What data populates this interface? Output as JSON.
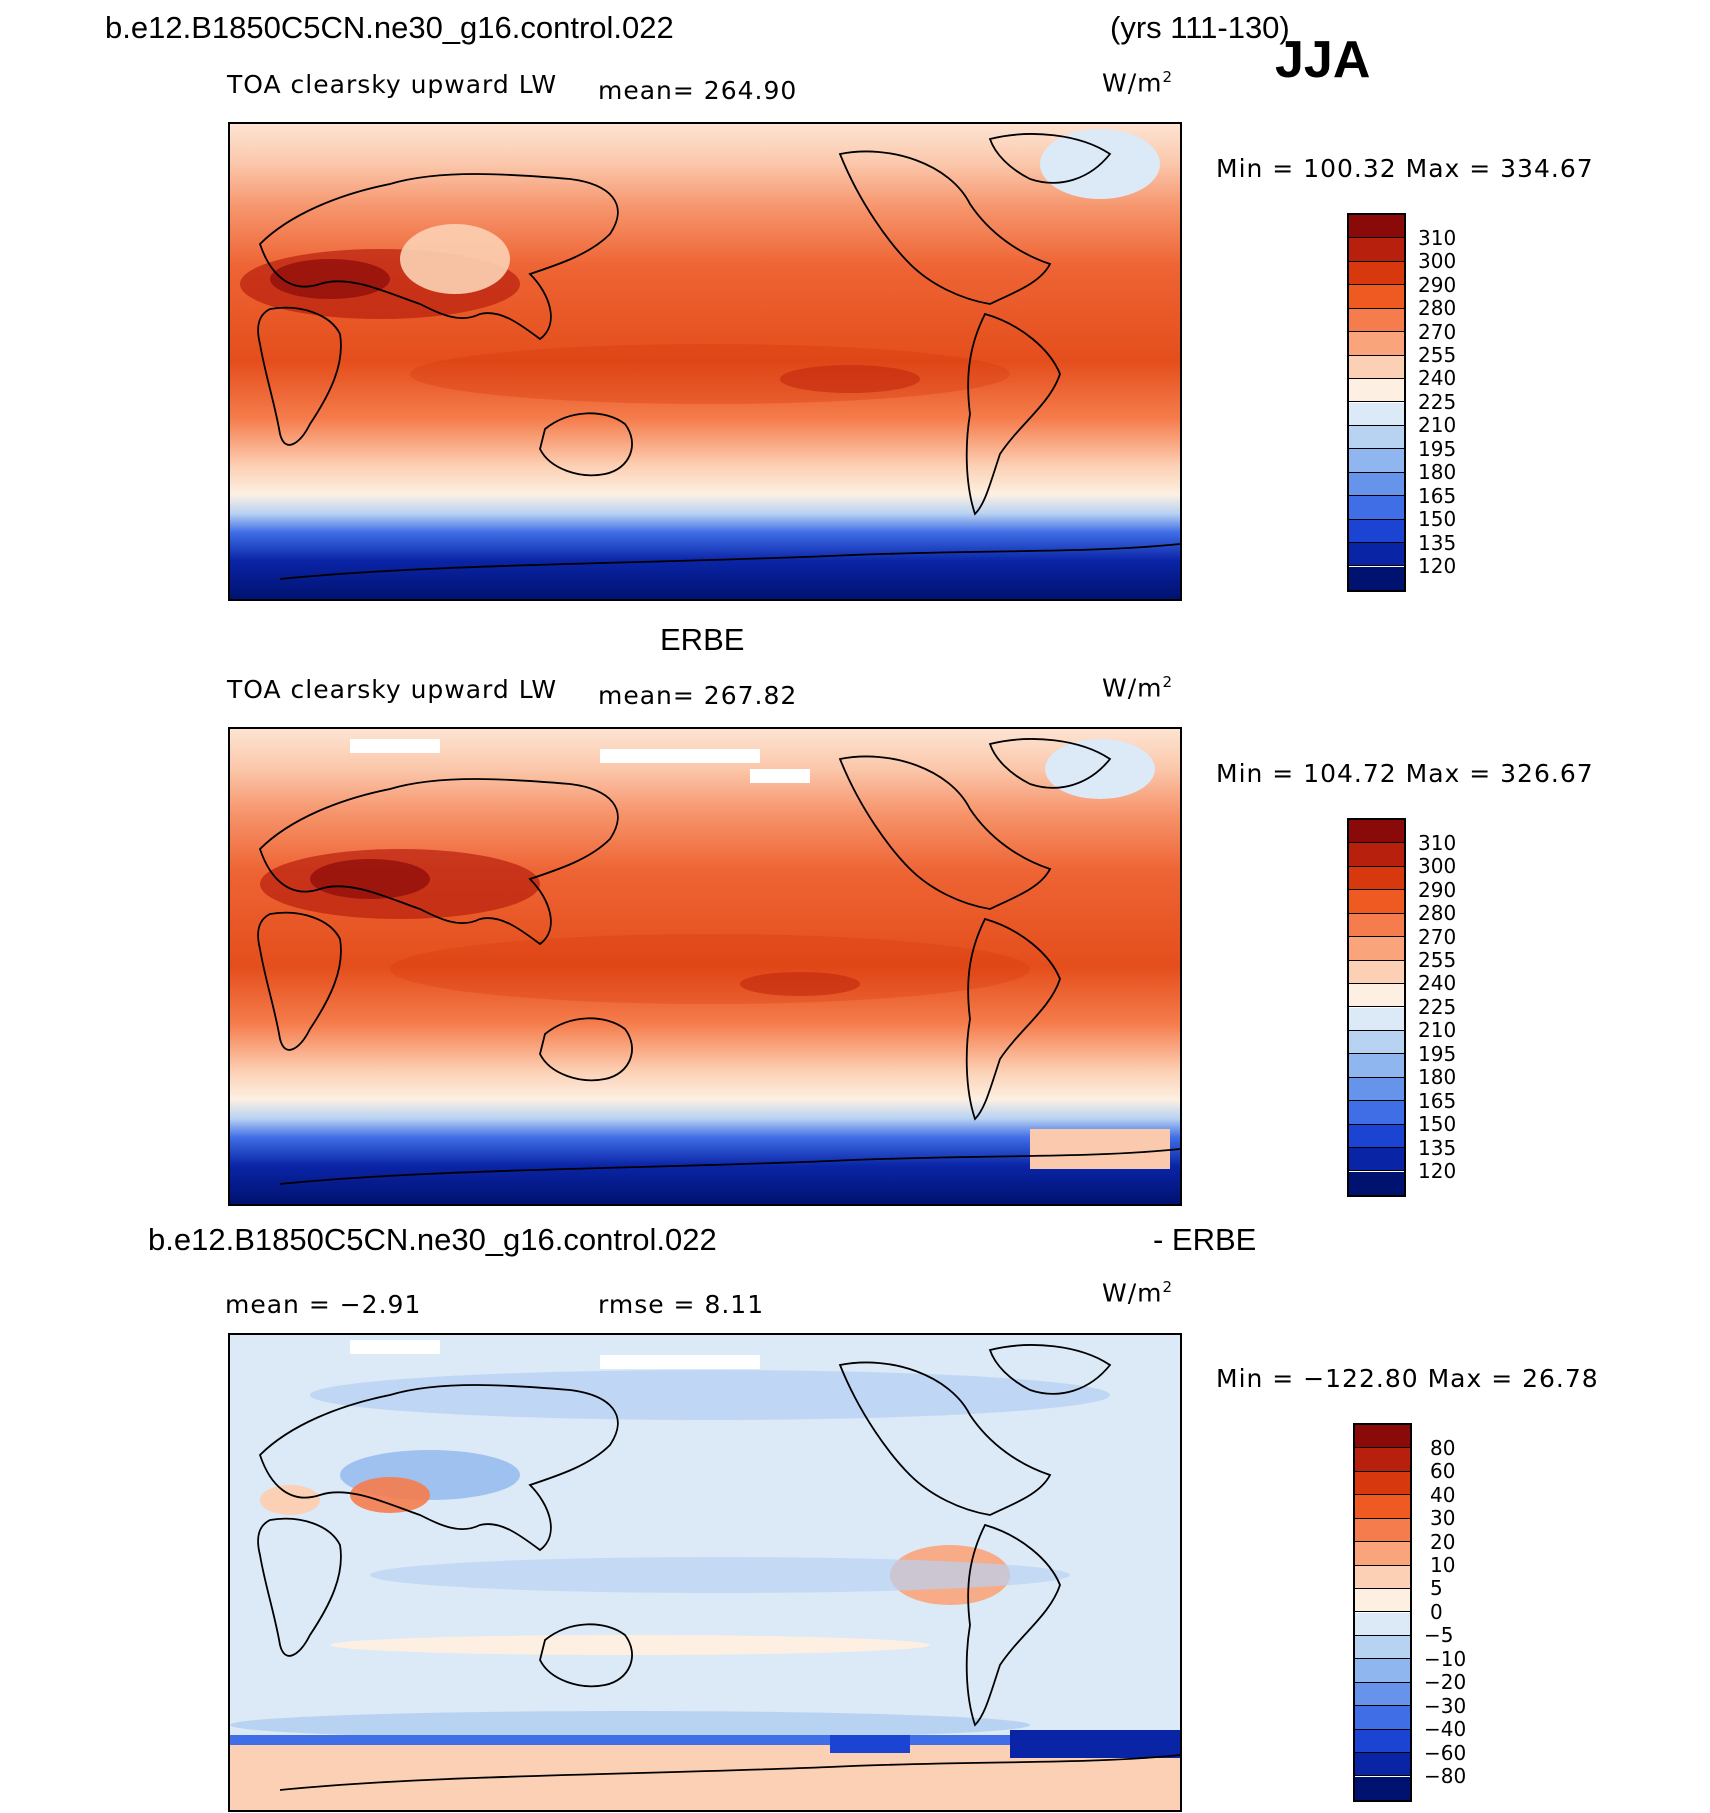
{
  "header": {
    "case_name": "b.e12.B1850C5CN.ne30_g16.control.022",
    "years": "(yrs 111-130)",
    "season": "JJA"
  },
  "panel1": {
    "variable": "TOA clearsky upward LW",
    "mean_text": "mean= 264.90",
    "units": "W/m",
    "units_sup": "2",
    "minmax": "Min = 100.32 Max = 334.67"
  },
  "panel2": {
    "title": "ERBE",
    "variable": "TOA clearsky upward LW",
    "mean_text": "mean= 267.82",
    "units": "W/m",
    "units_sup": "2",
    "minmax": "Min = 104.72 Max = 326.67"
  },
  "panel3": {
    "title_left": "b.e12.B1850C5CN.ne30_g16.control.022",
    "title_right": "- ERBE",
    "mean_text": "mean =   −2.91",
    "rmse_text": "rmse =    8.11",
    "units": "W/m",
    "units_sup": "2",
    "minmax": "Min = −122.80 Max =  26.78"
  },
  "colorbar_abs": {
    "levels": [
      "310",
      "300",
      "290",
      "280",
      "270",
      "255",
      "240",
      "225",
      "210",
      "195",
      "180",
      "165",
      "150",
      "135",
      "120"
    ],
    "colors": [
      "#8a0a0a",
      "#b8200e",
      "#d8380e",
      "#ee5a22",
      "#f57c4c",
      "#f9a47a",
      "#fcd0b4",
      "#fdf0e2",
      "#dce9f7",
      "#b8d2f2",
      "#8fb6ee",
      "#6694ea",
      "#3f6ee6",
      "#1c44d2",
      "#0a24a6",
      "#001270"
    ]
  },
  "colorbar_diff": {
    "levels": [
      "80",
      "60",
      "40",
      "30",
      "20",
      "10",
      "5",
      "0",
      "−5",
      "−10",
      "−20",
      "−30",
      "−40",
      "−60",
      "−80"
    ],
    "colors": [
      "#8a0a0a",
      "#b8200e",
      "#d8380e",
      "#ee5a22",
      "#f57c4c",
      "#f9a47a",
      "#fcd0b4",
      "#fdf0e2",
      "#dce9f7",
      "#b8d2f2",
      "#8fb6ee",
      "#6694ea",
      "#3f6ee6",
      "#1c44d2",
      "#0a24a6",
      "#001270"
    ]
  },
  "chart_data": [
    {
      "type": "heatmap",
      "title": "TOA clearsky upward LW",
      "units": "W/m2",
      "mean": 264.9,
      "min": 100.32,
      "max": 334.67,
      "contour_levels": [
        120,
        135,
        150,
        165,
        180,
        195,
        210,
        225,
        240,
        255,
        270,
        280,
        290,
        300,
        310
      ]
    },
    {
      "type": "heatmap",
      "title": "ERBE",
      "units": "W/m2",
      "mean": 267.82,
      "min": 104.72,
      "max": 326.67,
      "contour_levels": [
        120,
        135,
        150,
        165,
        180,
        195,
        210,
        225,
        240,
        255,
        270,
        280,
        290,
        300,
        310
      ]
    },
    {
      "type": "heatmap",
      "title": "b.e12.B1850C5CN.ne30_g16.control.022 - ERBE",
      "units": "W/m2",
      "mean": -2.91,
      "rmse": 8.11,
      "min": -122.8,
      "max": 26.78,
      "contour_levels": [
        -80,
        -60,
        -40,
        -30,
        -20,
        -10,
        -5,
        0,
        5,
        10,
        20,
        30,
        40,
        60,
        80
      ]
    }
  ]
}
